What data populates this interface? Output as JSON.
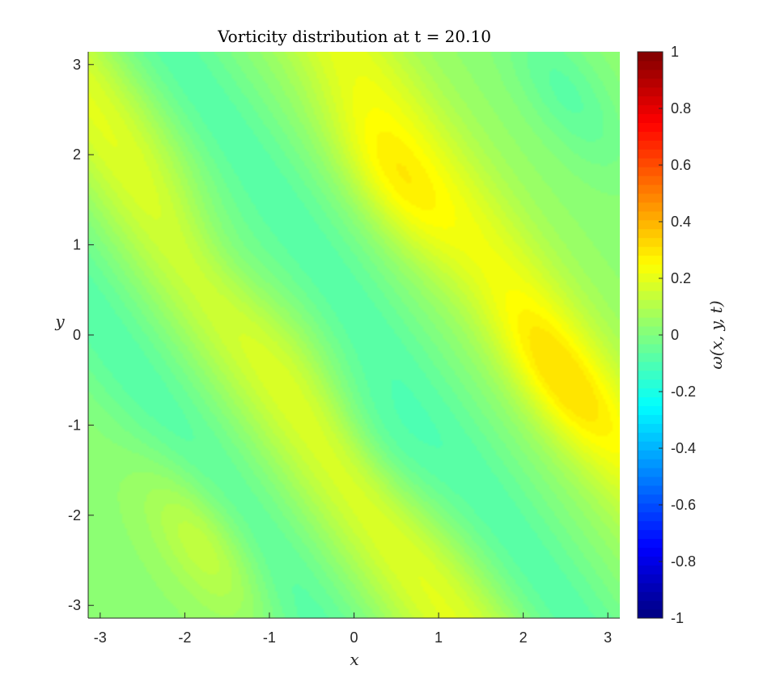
{
  "chart_data": {
    "type": "heatmap",
    "title": "Vorticity distribution at t = 20.10",
    "xlabel": "x",
    "ylabel": "y",
    "colorbar_label": "ω(x, y, t)",
    "xlim": [
      -3.1416,
      3.1416
    ],
    "ylim": [
      -3.1416,
      3.1416
    ],
    "clim": [
      -1,
      1
    ],
    "colormap": "jet",
    "xticks": [
      -3,
      -2,
      -1,
      0,
      1,
      2,
      3
    ],
    "xtick_labels": [
      "-3",
      "-2",
      "-1",
      "0",
      "1",
      "2",
      "3"
    ],
    "yticks": [
      -3,
      -2,
      -1,
      0,
      1,
      2,
      3
    ],
    "ytick_labels": [
      "-3",
      "-2",
      "-1",
      "0",
      "1",
      "2",
      "3"
    ],
    "cticks": [
      -1,
      -0.8,
      -0.6,
      -0.4,
      -0.2,
      0,
      0.2,
      0.4,
      0.6,
      0.8,
      1
    ],
    "ctick_labels": [
      "-1",
      "-0.8",
      "-0.6",
      "-0.4",
      "-0.2",
      "0",
      "0.2",
      "0.4",
      "0.6",
      "0.8",
      "1"
    ],
    "value_range_shown": [
      -0.2,
      0.3
    ],
    "features": [
      {
        "kind": "band",
        "sign": "positive",
        "value": 0.3,
        "along": "x + 0.75y",
        "offset": -1.2
      },
      {
        "kind": "band",
        "sign": "positive",
        "value": 0.3,
        "along": "x + 0.75y",
        "offset": 2.3
      },
      {
        "kind": "band",
        "sign": "negative",
        "value": -0.2,
        "along": "x + 0.75y",
        "offset": 0.2
      },
      {
        "kind": "band",
        "sign": "negative",
        "value": -0.2,
        "along": "x + 0.75y",
        "offset": -2.9
      },
      {
        "kind": "maximum",
        "x": 2.4,
        "y": -0.5,
        "value": 0.3
      },
      {
        "kind": "maximum",
        "x": 0.45,
        "y": 1.7,
        "value": 0.3
      },
      {
        "kind": "maximum",
        "x": -1.75,
        "y": -2.3,
        "value": 0.3
      },
      {
        "kind": "minimum",
        "x": 0.3,
        "y": -1.2,
        "value": -0.2
      },
      {
        "kind": "minimum",
        "x": -1.5,
        "y": 0.9,
        "value": -0.2
      },
      {
        "kind": "minimum",
        "x": 2.5,
        "y": 2.7,
        "value": -0.2
      }
    ]
  }
}
